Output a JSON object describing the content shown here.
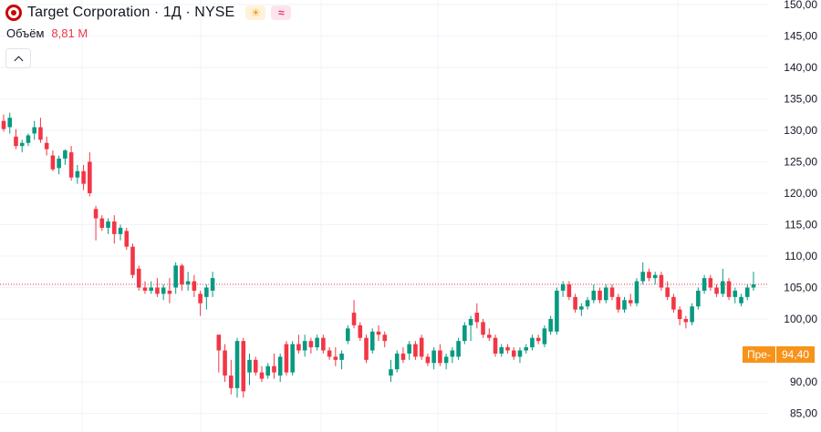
{
  "header": {
    "symbol_title": "Target Corporation · 1Д · NYSE",
    "sun_icon": "sun-icon",
    "wave_icon": "wave-icon"
  },
  "volume": {
    "label": "Объём",
    "value": "8,81 M"
  },
  "price_tag": {
    "label": "Пре-",
    "value": "94,40"
  },
  "colors": {
    "up": "#089981",
    "down": "#f23645",
    "grid": "#f0f3fa",
    "last_price_line": "#f23645",
    "premarket": "#f7931a"
  },
  "chart_data": {
    "type": "candlestick",
    "y_ticks": [
      "150,00",
      "145,00",
      "140,00",
      "135,00",
      "130,00",
      "125,00",
      "120,00",
      "115,00",
      "110,00",
      "105,00",
      "100,00",
      "90,00",
      "85,00"
    ],
    "y_tick_values": [
      150,
      145,
      140,
      135,
      130,
      125,
      120,
      115,
      110,
      105,
      100,
      90,
      85
    ],
    "ylim": [
      84,
      151
    ],
    "last_price": 105.5,
    "premarket_price": 94.4,
    "candles": [
      [
        131.5,
        132.5,
        129.8,
        130.2
      ],
      [
        130.5,
        132.8,
        129.5,
        132.0
      ],
      [
        129.0,
        130.2,
        127.0,
        127.5
      ],
      [
        127.5,
        128.5,
        126.5,
        128.0
      ],
      [
        128.0,
        129.5,
        127.5,
        129.2
      ],
      [
        129.5,
        131.5,
        128.5,
        130.5
      ],
      [
        130.5,
        132.0,
        128.0,
        128.5
      ],
      [
        128.0,
        129.0,
        126.0,
        127.0
      ],
      [
        126.0,
        126.8,
        123.5,
        123.8
      ],
      [
        124.0,
        126.0,
        123.0,
        125.5
      ],
      [
        125.5,
        127.0,
        124.5,
        126.8
      ],
      [
        126.5,
        127.5,
        122.0,
        122.5
      ],
      [
        122.5,
        124.5,
        121.5,
        123.5
      ],
      [
        123.5,
        124.5,
        120.5,
        121.5
      ],
      [
        125.0,
        126.5,
        119.5,
        120.0
      ],
      [
        117.5,
        118.0,
        112.5,
        116.0
      ],
      [
        116.0,
        116.5,
        114.0,
        114.5
      ],
      [
        114.5,
        116.0,
        113.5,
        115.5
      ],
      [
        115.5,
        116.5,
        112.0,
        113.5
      ],
      [
        113.5,
        115.0,
        112.5,
        114.5
      ],
      [
        114.0,
        114.5,
        111.0,
        111.5
      ],
      [
        111.5,
        112.0,
        106.5,
        107.0
      ],
      [
        108.0,
        108.5,
        104.5,
        105.0
      ],
      [
        105.0,
        106.0,
        104.0,
        104.5
      ],
      [
        104.5,
        106.0,
        104.0,
        105.0
      ],
      [
        105.0,
        106.5,
        103.5,
        104.0
      ],
      [
        104.0,
        105.5,
        103.0,
        105.0
      ],
      [
        104.5,
        106.5,
        102.5,
        104.0
      ],
      [
        105.0,
        109.0,
        104.0,
        108.5
      ],
      [
        108.5,
        108.8,
        104.5,
        105.5
      ],
      [
        105.5,
        107.5,
        104.5,
        106.0
      ],
      [
        106.0,
        107.0,
        103.5,
        104.5
      ],
      [
        104.0,
        104.5,
        100.5,
        102.5
      ],
      [
        103.5,
        105.5,
        101.5,
        105.0
      ],
      [
        104.5,
        107.5,
        103.5,
        106.5
      ],
      [
        97.5,
        97.5,
        91.5,
        95.0
      ],
      [
        95.0,
        96.0,
        90.0,
        91.0
      ],
      [
        91.0,
        93.5,
        88.0,
        89.0
      ],
      [
        89.0,
        97.0,
        87.5,
        96.5
      ],
      [
        96.5,
        97.0,
        87.5,
        88.5
      ],
      [
        91.5,
        94.5,
        89.5,
        93.5
      ],
      [
        93.5,
        94.0,
        91.0,
        91.5
      ],
      [
        91.5,
        92.5,
        90.0,
        90.5
      ],
      [
        91.0,
        93.0,
        90.5,
        92.5
      ],
      [
        92.5,
        94.5,
        90.5,
        91.5
      ],
      [
        91.0,
        94.5,
        90.0,
        94.0
      ],
      [
        96.0,
        96.5,
        91.0,
        91.5
      ],
      [
        91.5,
        96.5,
        91.0,
        96.0
      ],
      [
        96.0,
        97.5,
        94.5,
        95.0
      ],
      [
        95.0,
        97.5,
        94.0,
        96.5
      ],
      [
        96.5,
        97.0,
        94.5,
        95.5
      ],
      [
        95.5,
        97.5,
        95.0,
        97.0
      ],
      [
        97.0,
        97.5,
        94.5,
        95.0
      ],
      [
        95.0,
        95.5,
        93.5,
        94.0
      ],
      [
        94.0,
        95.5,
        92.5,
        93.5
      ],
      [
        93.5,
        95.0,
        92.0,
        94.5
      ],
      [
        96.5,
        99.0,
        96.0,
        98.5
      ],
      [
        101.0,
        103.0,
        98.5,
        99.0
      ],
      [
        99.0,
        99.5,
        96.5,
        97.0
      ],
      [
        97.0,
        97.5,
        93.0,
        93.5
      ],
      [
        95.0,
        98.5,
        94.5,
        98.0
      ],
      [
        98.0,
        99.0,
        96.5,
        97.5
      ],
      [
        97.5,
        98.0,
        95.5,
        96.5
      ],
      [
        91.0,
        93.5,
        90.0,
        92.0
      ],
      [
        92.0,
        95.0,
        91.5,
        94.5
      ],
      [
        94.5,
        95.5,
        93.0,
        93.5
      ],
      [
        94.5,
        96.5,
        93.5,
        96.0
      ],
      [
        96.0,
        96.5,
        93.5,
        94.0
      ],
      [
        97.0,
        97.5,
        93.5,
        94.0
      ],
      [
        94.0,
        94.5,
        92.5,
        93.0
      ],
      [
        93.0,
        95.5,
        92.0,
        95.0
      ],
      [
        95.0,
        96.0,
        92.5,
        93.0
      ],
      [
        93.0,
        94.5,
        92.0,
        94.0
      ],
      [
        94.0,
        95.5,
        93.0,
        95.0
      ],
      [
        94.0,
        97.0,
        93.5,
        96.5
      ],
      [
        96.5,
        99.5,
        96.0,
        99.0
      ],
      [
        99.0,
        100.5,
        96.5,
        100.0
      ],
      [
        101.0,
        102.5,
        98.5,
        99.5
      ],
      [
        99.5,
        100.0,
        97.0,
        97.5
      ],
      [
        97.5,
        98.5,
        96.5,
        97.0
      ],
      [
        97.0,
        97.5,
        94.0,
        94.5
      ],
      [
        94.5,
        96.0,
        94.0,
        95.5
      ],
      [
        95.5,
        96.0,
        94.5,
        95.0
      ],
      [
        95.0,
        95.5,
        93.5,
        94.0
      ],
      [
        94.0,
        95.5,
        93.0,
        95.0
      ],
      [
        95.0,
        96.0,
        94.5,
        95.5
      ],
      [
        95.5,
        97.5,
        95.0,
        97.0
      ],
      [
        97.0,
        97.5,
        96.0,
        96.5
      ],
      [
        96.0,
        99.0,
        95.5,
        98.5
      ],
      [
        98.0,
        100.5,
        97.5,
        100.0
      ],
      [
        98.0,
        105.0,
        97.5,
        104.5
      ],
      [
        104.5,
        106.0,
        103.5,
        105.5
      ],
      [
        105.5,
        106.0,
        103.0,
        103.5
      ],
      [
        103.5,
        104.0,
        101.0,
        101.5
      ],
      [
        101.5,
        102.5,
        100.5,
        102.0
      ],
      [
        102.0,
        103.5,
        101.5,
        103.0
      ],
      [
        103.0,
        105.5,
        102.5,
        104.5
      ],
      [
        104.5,
        105.0,
        102.5,
        103.0
      ],
      [
        103.0,
        105.5,
        102.5,
        105.0
      ],
      [
        105.0,
        105.5,
        103.0,
        103.5
      ],
      [
        103.5,
        104.0,
        101.0,
        101.5
      ],
      [
        101.5,
        103.5,
        101.0,
        103.0
      ],
      [
        103.0,
        104.0,
        102.0,
        102.5
      ],
      [
        102.5,
        106.5,
        102.0,
        106.0
      ],
      [
        106.0,
        109.0,
        105.5,
        107.5
      ],
      [
        107.5,
        108.0,
        106.0,
        106.5
      ],
      [
        106.5,
        107.5,
        105.5,
        107.0
      ],
      [
        107.0,
        107.5,
        104.5,
        105.0
      ],
      [
        105.0,
        106.0,
        103.0,
        103.5
      ],
      [
        103.5,
        104.0,
        101.0,
        101.5
      ],
      [
        101.5,
        102.0,
        99.0,
        100.0
      ],
      [
        100.0,
        100.5,
        98.5,
        99.5
      ],
      [
        99.5,
        102.5,
        99.0,
        102.0
      ],
      [
        102.0,
        105.0,
        101.5,
        104.5
      ],
      [
        104.5,
        107.0,
        104.0,
        106.5
      ],
      [
        106.5,
        107.0,
        104.5,
        105.0
      ],
      [
        105.0,
        105.5,
        103.5,
        104.0
      ],
      [
        104.0,
        108.0,
        103.5,
        106.0
      ],
      [
        106.0,
        106.5,
        103.0,
        103.5
      ],
      [
        103.5,
        105.0,
        102.5,
        104.5
      ],
      [
        102.5,
        104.0,
        102.0,
        103.5
      ],
      [
        103.5,
        105.5,
        103.0,
        105.0
      ],
      [
        105.0,
        107.5,
        104.5,
        105.5
      ]
    ]
  }
}
